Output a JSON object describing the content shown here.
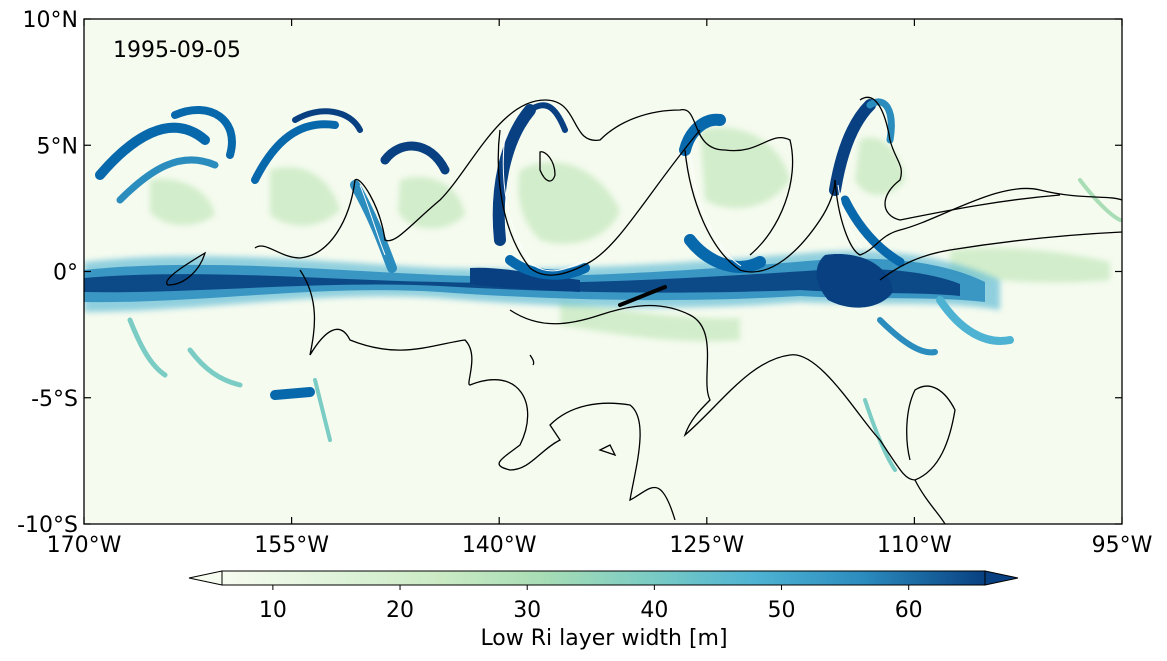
{
  "chart_data": {
    "type": "heatmap",
    "title": "",
    "annotation": "1995-09-05",
    "xlabel": "",
    "ylabel": "",
    "x_ticks": [
      "170°W",
      "155°W",
      "140°W",
      "125°W",
      "110°W",
      "95°W"
    ],
    "y_ticks": [
      "10°N",
      "5°N",
      "0°",
      "-5°S",
      "-10°S"
    ],
    "xlim": [
      -170,
      -95
    ],
    "ylim": [
      -10,
      10
    ],
    "colorbar": {
      "label": "Low Ri layer width [m]",
      "ticks": [
        "10",
        "20",
        "30",
        "40",
        "50",
        "60"
      ],
      "range": [
        6,
        66
      ],
      "extend": "both",
      "colormap": "GnBu",
      "colors": [
        "#f7fcf0",
        "#ccebc5",
        "#a8ddb5",
        "#7bccc4",
        "#4eb3d3",
        "#2b8cbe",
        "#0868ac",
        "#084081"
      ]
    },
    "features": [
      {
        "kind": "equatorial band",
        "lat_range": [
          -2,
          1
        ],
        "value_approx": 60
      },
      {
        "kind": "tropical instability wave crest",
        "lon": -148,
        "lat_peak": 3.5
      },
      {
        "kind": "tropical instability wave crest",
        "lon": -136,
        "lat_peak": 6.8
      },
      {
        "kind": "tropical instability wave crest",
        "lon": -123,
        "lat_peak": 6.5
      },
      {
        "kind": "tropical instability wave crest",
        "lon": -111,
        "lat_peak": 7.0
      }
    ]
  }
}
